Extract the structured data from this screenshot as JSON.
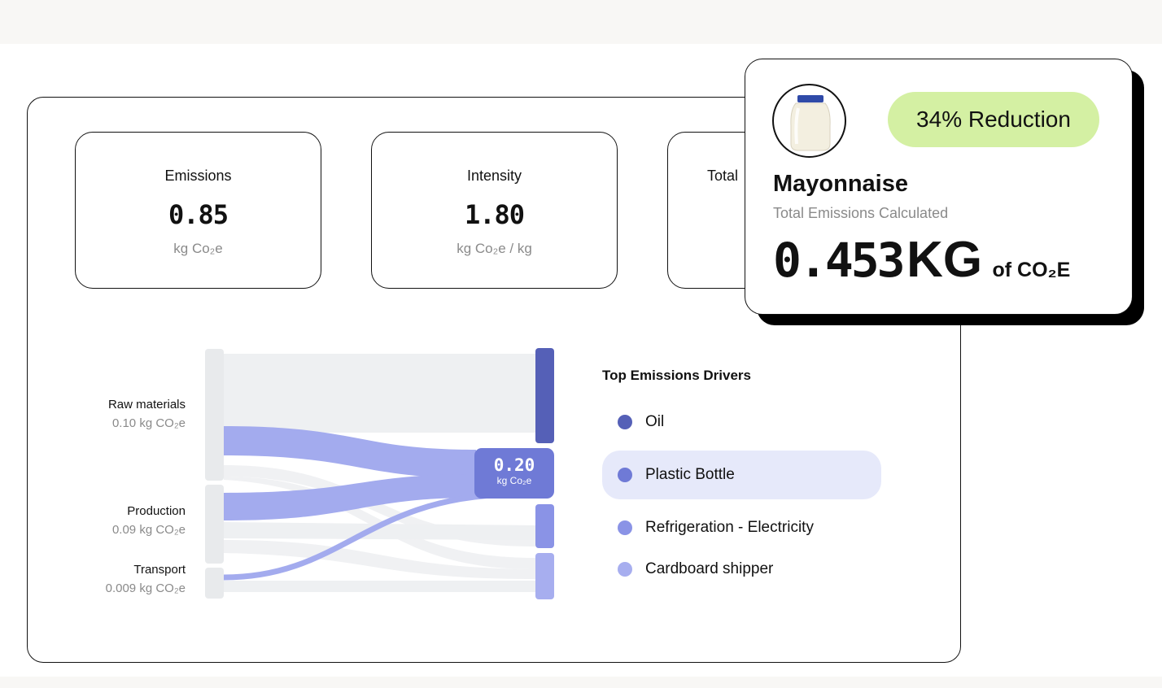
{
  "stats": [
    {
      "label": "Emissions",
      "value": "0.85",
      "unit": "kg Co₂e"
    },
    {
      "label": "Intensity",
      "value": "1.80",
      "unit": "kg Co₂e / kg"
    },
    {
      "label": "Total"
    }
  ],
  "sankey": {
    "sources": [
      {
        "name": "Raw materials",
        "value": "0.10 kg CO₂e"
      },
      {
        "name": "Production",
        "value": "0.09 kg CO₂e"
      },
      {
        "name": "Transport",
        "value": "0.009 kg CO₂e"
      }
    ],
    "center": {
      "value": "0.20",
      "unit": "kg Co₂e"
    },
    "colors": {
      "oil": "#5560b7",
      "plastic": "#6f7ad6",
      "refrigeration": "#8a93e6",
      "cardboard": "#a7aeef",
      "neutral": "#eef0f2"
    }
  },
  "drivers": {
    "title": "Top Emissions Drivers",
    "items": [
      {
        "label": "Oil",
        "color": "#5560b7",
        "active": false
      },
      {
        "label": "Plastic Bottle",
        "color": "#6f7ad6",
        "active": true
      },
      {
        "label": "Refrigeration - Electricity",
        "color": "#8a93e6",
        "active": false
      },
      {
        "label": "Cardboard shipper",
        "color": "#a7aeef",
        "active": false
      }
    ]
  },
  "product": {
    "badge": "34% Reduction",
    "name": "Mayonnaise",
    "subtitle": "Total Emissions Calculated",
    "total_value": "0.453",
    "total_unit": "KG",
    "total_suffix": "of CO₂E",
    "image_icon": "mayonnaise-jar-icon",
    "badge_color": "#d4f0a3"
  }
}
